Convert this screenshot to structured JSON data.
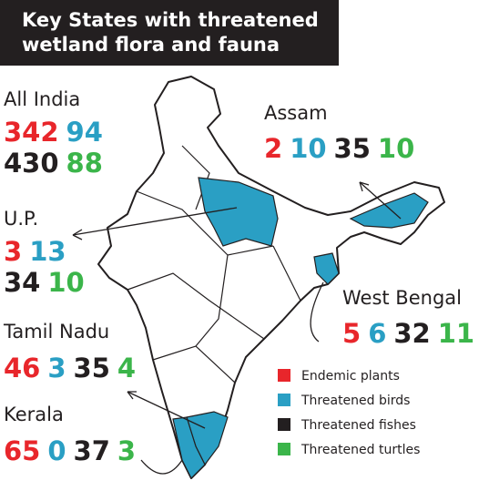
{
  "title": "Key States with threatened wetland flora and fauna",
  "legend": [
    {
      "label": "Endemic plants",
      "color": "#e8262b"
    },
    {
      "label": "Threatened birds",
      "color": "#2a9fc4"
    },
    {
      "label": "Threatened fishes",
      "color": "#231f20"
    },
    {
      "label": "Threatened turtles",
      "color": "#3bb54a"
    }
  ],
  "regions": [
    {
      "name": "All India",
      "values": [
        342,
        94,
        430,
        88
      ]
    },
    {
      "name": "U.P.",
      "values": [
        3,
        13,
        34,
        10
      ]
    },
    {
      "name": "Tamil Nadu",
      "values": [
        46,
        3,
        35,
        4
      ]
    },
    {
      "name": "Kerala",
      "values": [
        65,
        0,
        37,
        3
      ]
    },
    {
      "name": "Assam",
      "values": [
        2,
        10,
        35,
        10
      ]
    },
    {
      "name": "West Bengal",
      "values": [
        5,
        6,
        32,
        11
      ]
    }
  ]
}
